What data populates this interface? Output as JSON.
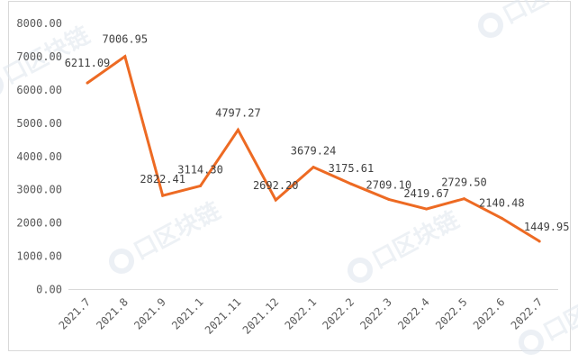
{
  "chart_data": {
    "type": "line",
    "title": "",
    "xlabel": "",
    "ylabel": "",
    "categories": [
      "2021.7",
      "2021.8",
      "2021.9",
      "2021.1",
      "2021.11",
      "2021.12",
      "2022.1",
      "2022.2",
      "2022.3",
      "2022.4",
      "2022.5",
      "2022.6",
      "2022.7"
    ],
    "series": [
      {
        "values": [
          6211.09,
          7006.95,
          2822.41,
          3114.3,
          4797.27,
          2692.2,
          3679.24,
          3175.61,
          2709.1,
          2419.67,
          2729.5,
          2140.48,
          1449.95
        ],
        "labels": [
          "6211.09",
          "7006.95",
          "2822.41",
          "3114.30",
          "4797.27",
          "2692.20",
          "3679.24",
          "3175.61",
          "2709.10",
          "2419.67",
          "2729.50",
          "2140.48",
          "1449.95"
        ],
        "color": "#ed6a23"
      }
    ],
    "ylim": [
      0,
      8000
    ],
    "yticks": [
      "0.00",
      "1000.00",
      "2000.00",
      "3000.00",
      "4000.00",
      "5000.00",
      "6000.00",
      "7000.00",
      "8000.00"
    ],
    "grid": false,
    "legend": "none"
  },
  "watermark": {
    "text": "口区块链"
  }
}
